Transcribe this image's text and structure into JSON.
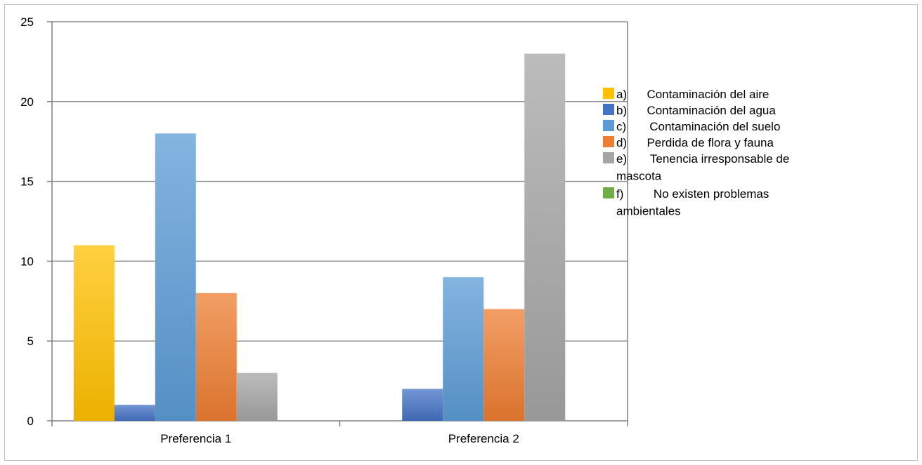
{
  "chart_data": {
    "type": "bar",
    "title": "",
    "xlabel": "",
    "ylabel": "",
    "ylim": [
      0,
      25
    ],
    "yticks": [
      0,
      5,
      10,
      15,
      20,
      25
    ],
    "grid": true,
    "legend_position": "right",
    "categories": [
      "Preferencia 1",
      "Preferencia 2"
    ],
    "series": [
      {
        "name": "a)      Contaminación del aire",
        "legend_lines": [
          "a)      Contaminación del aire"
        ],
        "color": "#FFC000",
        "values": [
          11,
          0
        ]
      },
      {
        "name": "b)      Contaminación del agua",
        "legend_lines": [
          "b)      Contaminación del agua"
        ],
        "color": "#4472C4",
        "values": [
          1,
          2
        ]
      },
      {
        "name": "c)       Contaminación del suelo",
        "legend_lines": [
          "c)       Contaminación del suelo"
        ],
        "color": "#5B9BD5",
        "values": [
          18,
          9
        ]
      },
      {
        "name": "d)      Perdida de flora y fauna",
        "legend_lines": [
          "d)      Perdida de flora y fauna"
        ],
        "color": "#ED7D31",
        "values": [
          8,
          7
        ]
      },
      {
        "name": "e)       Tenencia irresponsable de mascota",
        "legend_lines": [
          "e)       Tenencia irresponsable de",
          "mascota"
        ],
        "color": "#A5A5A5",
        "values": [
          3,
          23
        ]
      },
      {
        "name": "f)         No existen problemas ambientales",
        "legend_lines": [
          "f)         No existen problemas",
          "ambientales"
        ],
        "color": "#70AD47",
        "values": [
          0,
          0
        ]
      }
    ]
  }
}
